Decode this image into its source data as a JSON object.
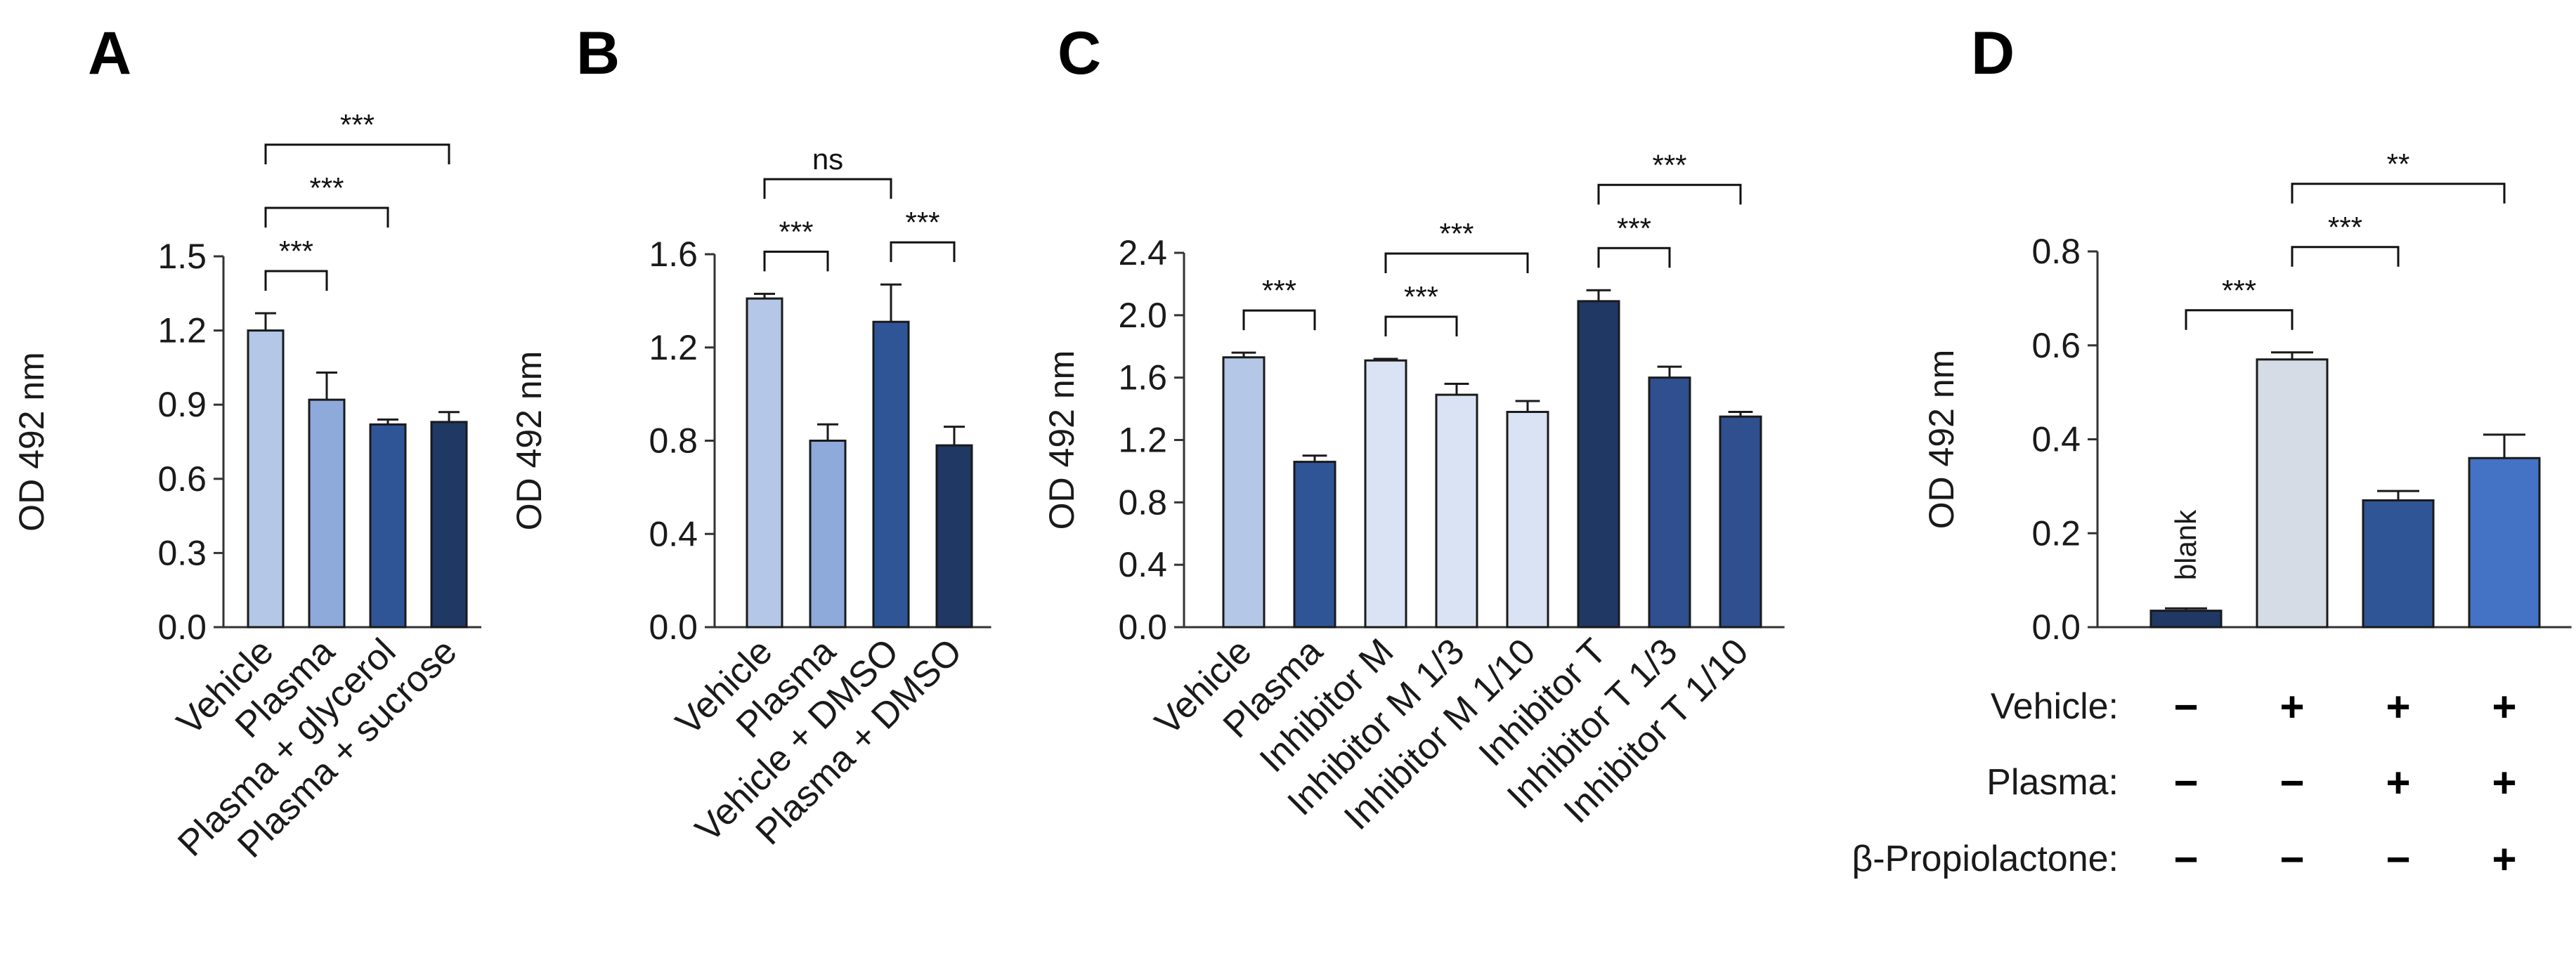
{
  "chart_data": [
    {
      "panel": "A",
      "type": "bar",
      "ylabel": "OD 492 nm",
      "ylim": [
        0,
        1.5
      ],
      "yticks": [
        "0.0",
        "0.3",
        "0.6",
        "0.9",
        "1.2",
        "1.5"
      ],
      "categories": [
        "Vehicle",
        "Plasma",
        "Plasma + glycerol",
        "Plasma + sucrose"
      ],
      "values": [
        1.2,
        0.92,
        0.82,
        0.83
      ],
      "errors": [
        0.07,
        0.11,
        0.02,
        0.04
      ],
      "colors": [
        "#b4c7e7",
        "#8eaadb",
        "#2f5597",
        "#1f3864"
      ],
      "significance": [
        {
          "from": 0,
          "to": 1,
          "label": "***"
        },
        {
          "from": 0,
          "to": 2,
          "label": "***"
        },
        {
          "from": 0,
          "to": 3,
          "label": "***"
        }
      ]
    },
    {
      "panel": "B",
      "type": "bar",
      "ylabel": "OD 492 nm",
      "ylim": [
        0,
        1.6
      ],
      "yticks": [
        "0.0",
        "0.4",
        "0.8",
        "1.2",
        "1.6"
      ],
      "categories": [
        "Vehicle",
        "Plasma",
        "Vehicle + DMSO",
        "Plasma + DMSO"
      ],
      "values": [
        1.41,
        0.8,
        1.31,
        0.78
      ],
      "errors": [
        0.02,
        0.07,
        0.16,
        0.08
      ],
      "colors": [
        "#b4c7e7",
        "#8eaadb",
        "#2f5597",
        "#1f3864"
      ],
      "significance": [
        {
          "from": 0,
          "to": 1,
          "label": "***"
        },
        {
          "from": 2,
          "to": 3,
          "label": "***"
        },
        {
          "from": 0,
          "to": 2,
          "label": "ns"
        }
      ]
    },
    {
      "panel": "C",
      "type": "bar",
      "ylabel": "OD 492 nm",
      "ylim": [
        0,
        2.4
      ],
      "yticks": [
        "0.0",
        "0.4",
        "0.8",
        "1.2",
        "1.6",
        "2.0",
        "2.4"
      ],
      "categories": [
        "Vehicle",
        "Plasma",
        "Inhibitor M",
        "Inhibitor M 1/3",
        "Inhibitor M 1/10",
        "Inhibitor T",
        "Inhibitor T 1/3",
        "Inhibitor T 1/10"
      ],
      "values": [
        1.73,
        1.06,
        1.71,
        1.49,
        1.38,
        2.09,
        1.6,
        1.35
      ],
      "errors": [
        0.03,
        0.04,
        0.01,
        0.07,
        0.07,
        0.07,
        0.07,
        0.03
      ],
      "colors": [
        "#b4c7e7",
        "#2f5597",
        "#dae3f3",
        "#dae3f3",
        "#dae3f3",
        "#1f3864",
        "#2f4f8f",
        "#2f4f8f"
      ],
      "significance": [
        {
          "from": 0,
          "to": 1,
          "label": "***"
        },
        {
          "from": 2,
          "to": 3,
          "label": "***"
        },
        {
          "from": 2,
          "to": 4,
          "label": "***"
        },
        {
          "from": 5,
          "to": 6,
          "label": "***"
        },
        {
          "from": 5,
          "to": 7,
          "label": "***"
        }
      ]
    },
    {
      "panel": "D",
      "type": "bar",
      "ylabel": "OD 492 nm",
      "ylim": [
        0,
        0.8
      ],
      "yticks": [
        "0.0",
        "0.2",
        "0.4",
        "0.6",
        "0.8"
      ],
      "categories": [
        "blank",
        "",
        "",
        ""
      ],
      "values": [
        0.035,
        0.57,
        0.27,
        0.36
      ],
      "errors": [
        0.005,
        0.015,
        0.02,
        0.05
      ],
      "colors": [
        "#1f3864",
        "#d6dce5",
        "#2f5597",
        "#4472c4"
      ],
      "significance": [
        {
          "from": 0,
          "to": 1,
          "label": "***"
        },
        {
          "from": 1,
          "to": 2,
          "label": "***"
        },
        {
          "from": 1,
          "to": 3,
          "label": "**"
        }
      ],
      "conditions": [
        {
          "label": "Vehicle:",
          "values": [
            "−",
            "+",
            "+",
            "+"
          ]
        },
        {
          "label": "Plasma:",
          "values": [
            "−",
            "−",
            "+",
            "+"
          ]
        },
        {
          "label": "β-Propiolactone:",
          "values": [
            "−",
            "−",
            "−",
            "+"
          ]
        }
      ]
    }
  ]
}
